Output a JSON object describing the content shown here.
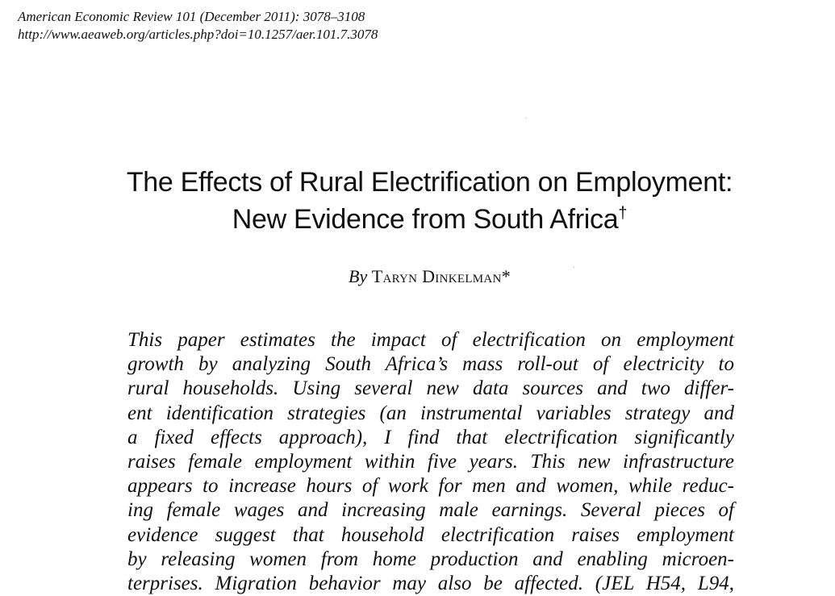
{
  "header": {
    "citation": "American Economic Review 101 (December 2011): 3078–3108",
    "url": "http://www.aeaweb.org/articles.php?doi=10.1257/aer.101.7.3078"
  },
  "title": {
    "line1": "The Effects of Rural Electrification on Employment:",
    "line2": "New Evidence from South Africa",
    "dagger": "†"
  },
  "byline": {
    "by": "By",
    "author": "Taryn Dinkelman*"
  },
  "abstract": {
    "lines": [
      "This paper estimates the impact of electrification on employment",
      "growth by analyzing South Africa’s mass roll-out of electricity to",
      "rural households. Using several new data sources and two differ-",
      "ent identification strategies (an instrumental variables strategy and",
      "a fixed effects approach), I find that electrification significantly",
      "raises female employment within five years. This new infrastructure",
      "appears to increase hours of work for men and women, while reduc-",
      "ing female wages and increasing male earnings. Several pieces of",
      "evidence suggest that household electrification raises employment",
      "by releasing women from home production and enabling microen-",
      "terprises. Migration behavior may also be affected. (JEL H54, L94,"
    ]
  }
}
